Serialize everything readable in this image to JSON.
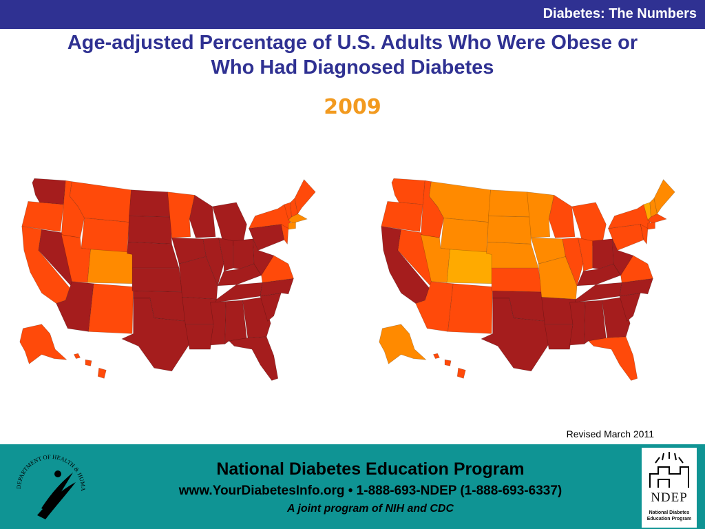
{
  "header": {
    "section_title": "Diabetes: The Numbers"
  },
  "slide": {
    "title_line1": "Age-adjusted Percentage of U.S. Adults Who Were Obese or",
    "title_line2": "Who Had Diagnosed Diabetes",
    "year": "2009"
  },
  "colors": {
    "header_bg": "#2f3192",
    "title": "#2f3192",
    "year": "#f29a1f",
    "footer_bg": "#0f9494",
    "category_darkest": "#a51d1d",
    "category_dark": "#ff4a0a",
    "category_mid": "#ff8a00",
    "category_light": "#ffaa00"
  },
  "maps": [
    {
      "id": "obesity",
      "state_colors": {
        "WA": "#a51d1d",
        "OR": "#ff4a0a",
        "CA": "#ff4a0a",
        "NV": "#a51d1d",
        "ID": "#ff4a0a",
        "MT": "#ff4a0a",
        "WY": "#ff4a0a",
        "UT": "#ff4a0a",
        "CO": "#ff8a00",
        "AZ": "#a51d1d",
        "NM": "#ff4a0a",
        "ND": "#a51d1d",
        "SD": "#a51d1d",
        "NE": "#a51d1d",
        "KS": "#a51d1d",
        "OK": "#a51d1d",
        "TX": "#a51d1d",
        "MN": "#ff4a0a",
        "IA": "#a51d1d",
        "MO": "#a51d1d",
        "AR": "#a51d1d",
        "LA": "#a51d1d",
        "WI": "#a51d1d",
        "IL": "#a51d1d",
        "MI": "#a51d1d",
        "IN": "#a51d1d",
        "OH": "#a51d1d",
        "KY": "#a51d1d",
        "TN": "#a51d1d",
        "MS": "#a51d1d",
        "AL": "#a51d1d",
        "GA": "#a51d1d",
        "FL": "#a51d1d",
        "SC": "#a51d1d",
        "NC": "#a51d1d",
        "VA": "#ff4a0a",
        "WV": "#a51d1d",
        "PA": "#a51d1d",
        "NY": "#ff4a0a",
        "VT": "#ff4a0a",
        "NH": "#ff4a0a",
        "ME": "#ff4a0a",
        "MA": "#ff8a00",
        "CT": "#ff8a00",
        "NJ": "#ff4a0a",
        "AK": "#ff4a0a",
        "HI": "#ff4a0a"
      }
    },
    {
      "id": "diabetes",
      "state_colors": {
        "WA": "#ff4a0a",
        "OR": "#ff4a0a",
        "CA": "#a51d1d",
        "NV": "#ff4a0a",
        "ID": "#ff4a0a",
        "MT": "#ff8a00",
        "WY": "#ff8a00",
        "UT": "#ff8a00",
        "CO": "#ffaa00",
        "AZ": "#ff4a0a",
        "NM": "#ff4a0a",
        "ND": "#ff8a00",
        "SD": "#ff8a00",
        "NE": "#ff8a00",
        "KS": "#ff4a0a",
        "OK": "#a51d1d",
        "TX": "#a51d1d",
        "MN": "#ff8a00",
        "IA": "#ff8a00",
        "MO": "#ff8a00",
        "AR": "#a51d1d",
        "LA": "#a51d1d",
        "WI": "#ff4a0a",
        "IL": "#ff4a0a",
        "MI": "#ff4a0a",
        "IN": "#ff4a0a",
        "OH": "#a51d1d",
        "KY": "#a51d1d",
        "TN": "#a51d1d",
        "MS": "#a51d1d",
        "AL": "#a51d1d",
        "GA": "#a51d1d",
        "FL": "#ff4a0a",
        "SC": "#a51d1d",
        "NC": "#a51d1d",
        "VA": "#ff4a0a",
        "WV": "#a51d1d",
        "PA": "#ff4a0a",
        "NY": "#ff4a0a",
        "VT": "#ffaa00",
        "NH": "#ff8a00",
        "ME": "#ff8a00",
        "MA": "#ff4a0a",
        "CT": "#ff4a0a",
        "NJ": "#ff4a0a",
        "AK": "#ff8a00",
        "HI": "#ff4a0a"
      }
    }
  ],
  "revised": "Revised March 2011",
  "footer": {
    "org": "National Diabetes Education Program",
    "contact": "www.YourDiabetesInfo.org • 1-888-693-NDEP (1-888-693-6337)",
    "joint": "A joint program of NIH and CDC",
    "hhs_seal_text": "DEPARTMENT OF HEALTH & HUMAN SERVICES · USA",
    "ndep_logo": "NDEP",
    "ndep_subtitle_line1": "National Diabetes",
    "ndep_subtitle_line2": "Education Program"
  }
}
